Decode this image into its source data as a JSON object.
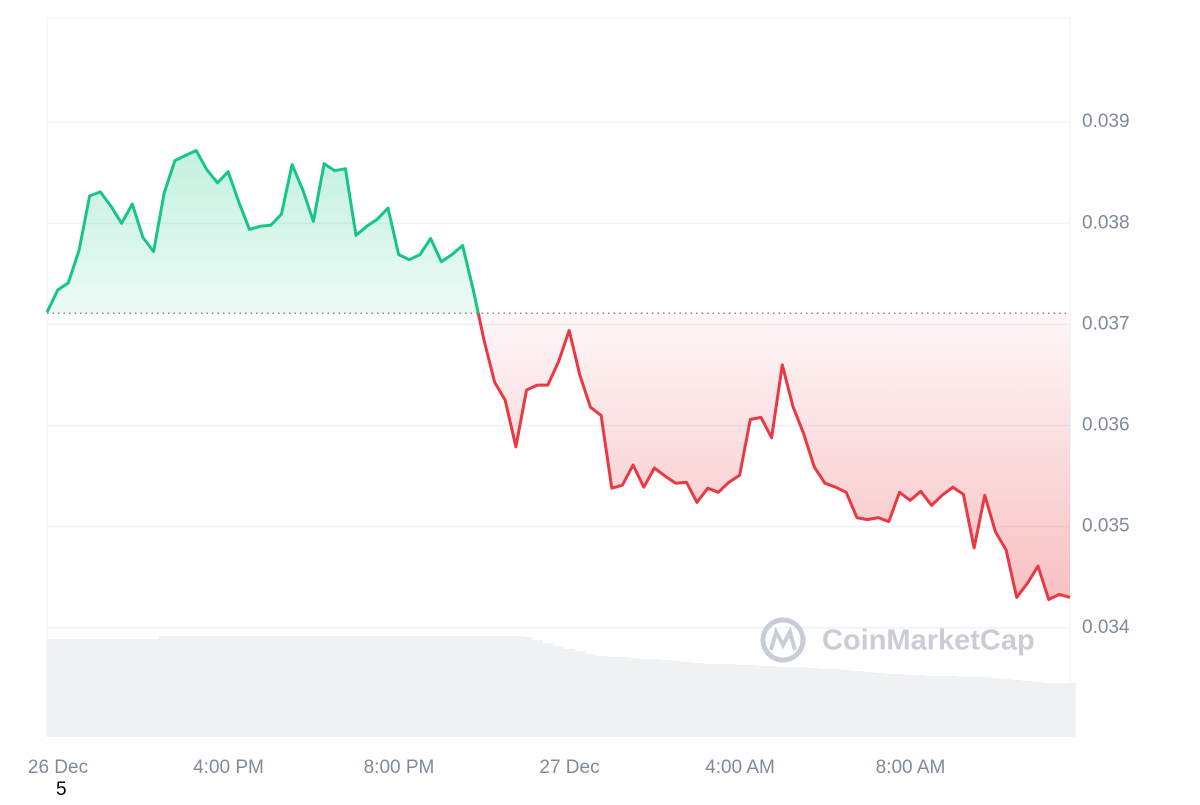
{
  "chart_data": {
    "type": "line",
    "x": [
      0,
      0.25,
      0.5,
      0.75,
      1,
      1.25,
      1.5,
      1.75,
      2,
      2.25,
      2.5,
      2.75,
      3,
      3.25,
      3.5,
      3.75,
      4,
      4.25,
      4.5,
      4.75,
      5,
      5.25,
      5.5,
      5.75,
      6,
      6.25,
      6.5,
      6.75,
      7,
      7.25,
      7.5,
      7.75,
      8,
      8.25,
      8.5,
      8.75,
      9,
      9.25,
      9.5,
      9.75,
      10,
      10.25,
      10.5,
      10.75,
      11,
      11.25,
      11.5,
      11.75,
      12,
      12.25,
      12.5,
      12.75,
      13,
      13.25,
      13.5,
      13.75,
      14,
      14.25,
      14.5,
      14.75,
      15,
      15.25,
      15.5,
      15.75,
      16,
      16.25,
      16.5,
      16.75,
      17,
      17.25,
      17.5,
      17.75,
      18,
      18.25,
      18.5,
      18.75,
      19,
      19.25,
      19.5,
      19.75,
      20,
      20.25,
      20.5,
      20.75,
      21,
      21.25,
      21.5,
      21.75,
      22,
      22.25,
      22.5,
      22.75,
      23,
      23.25,
      23.5,
      23.75,
      24
    ],
    "series": [
      {
        "name": "Price",
        "color_up": "#16c784",
        "color_down": "#ea3943",
        "values": [
          0.03712,
          0.03734,
          0.03741,
          0.03773,
          0.03827,
          0.03831,
          0.03817,
          0.038,
          0.03819,
          0.03786,
          0.03772,
          0.0383,
          0.03862,
          0.03867,
          0.03872,
          0.03853,
          0.0384,
          0.03851,
          0.03821,
          0.03794,
          0.03797,
          0.03798,
          0.03809,
          0.03858,
          0.03833,
          0.03802,
          0.03859,
          0.03852,
          0.03854,
          0.03788,
          0.03797,
          0.03804,
          0.03815,
          0.03769,
          0.03764,
          0.03769,
          0.03785,
          0.03762,
          0.03769,
          0.03778,
          0.03734,
          0.03685,
          0.03643,
          0.03625,
          0.03579,
          0.03635,
          0.0364,
          0.0364,
          0.03663,
          0.03694,
          0.0365,
          0.03618,
          0.0361,
          0.03538,
          0.03541,
          0.03561,
          0.03539,
          0.03558,
          0.0355,
          0.03543,
          0.03544,
          0.03524,
          0.03538,
          0.03534,
          0.03544,
          0.03551,
          0.03606,
          0.03608,
          0.03588,
          0.0366,
          0.03619,
          0.03592,
          0.03559,
          0.03543,
          0.03539,
          0.03534,
          0.03509,
          0.03507,
          0.03509,
          0.03505,
          0.03534,
          0.03526,
          0.03535,
          0.03521,
          0.03531,
          0.03539,
          0.03532,
          0.03479,
          0.03531,
          0.03495,
          0.03477,
          0.0343,
          0.03444,
          0.03461,
          0.03428,
          0.03433,
          0.0343
        ]
      },
      {
        "name": "Volume",
        "color": "#eff2f5",
        "axis": "y2",
        "values": [
          98,
          98,
          98,
          98,
          98,
          98,
          98,
          98,
          98,
          98,
          98,
          101,
          101,
          101,
          101,
          101,
          101,
          101,
          101,
          101,
          101,
          101,
          101,
          101,
          101,
          101,
          101,
          101,
          101,
          101,
          101,
          101,
          101,
          101,
          101,
          101,
          101,
          101,
          101,
          101,
          101,
          101,
          101,
          101,
          101,
          100,
          97,
          94,
          91,
          88,
          86,
          83,
          81,
          80,
          80,
          79,
          78,
          78,
          77,
          76,
          75,
          74,
          73,
          73,
          73,
          72,
          72,
          71,
          71,
          70,
          70,
          70,
          69,
          68,
          68,
          67,
          66,
          65,
          64,
          63,
          63,
          62,
          62,
          61,
          61,
          61,
          60,
          60,
          60,
          59,
          58,
          57,
          56,
          55,
          54,
          54,
          54
        ]
      }
    ],
    "baseline": 0.03711,
    "xlim": [
      0,
      24
    ],
    "xticks": [
      {
        "value": 0,
        "label": "26 Dec"
      },
      {
        "value": 4,
        "label": "4:00 PM"
      },
      {
        "value": 8,
        "label": "8:00 PM"
      },
      {
        "value": 12,
        "label": "27 Dec"
      },
      {
        "value": 16,
        "label": "4:00 AM"
      },
      {
        "value": 20,
        "label": "8:00 AM"
      }
    ],
    "ylim": [
      0.03292,
      0.04003
    ],
    "yticks": [
      0.034,
      0.035,
      0.036,
      0.037,
      0.038,
      0.039
    ],
    "y2lim": [
      0,
      110
    ],
    "grid": true,
    "watermark": "CoinMarketCap",
    "note": "5"
  }
}
